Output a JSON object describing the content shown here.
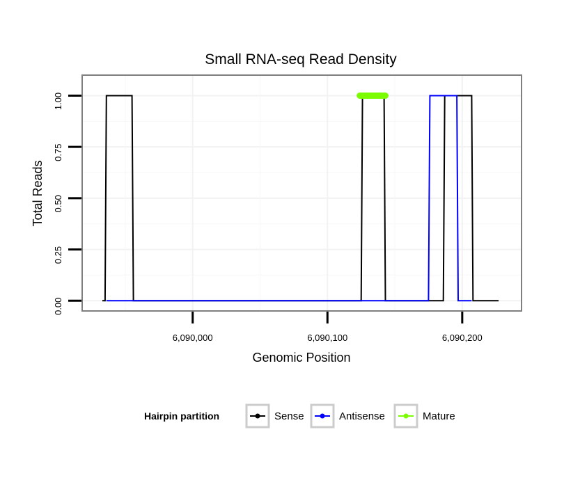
{
  "chart_data": {
    "type": "line",
    "title": "Small RNA-seq Read Density",
    "xlabel": "Genomic Position",
    "ylabel": "Total Reads",
    "xlim": [
      6089918,
      6090244
    ],
    "ylim": [
      -0.05,
      1.1
    ],
    "x_ticks": [
      {
        "value": 6090000,
        "label": "6,090,000"
      },
      {
        "value": 6090100,
        "label": "6,090,100"
      },
      {
        "value": 6090200,
        "label": "6,090,200"
      }
    ],
    "y_ticks": [
      {
        "value": 0,
        "label": "0.00"
      },
      {
        "value": 0.25,
        "label": "0.25"
      },
      {
        "value": 0.5,
        "label": "0.50"
      },
      {
        "value": 0.75,
        "label": "0.75"
      },
      {
        "value": 1.0,
        "label": "1.00"
      }
    ],
    "grid": true,
    "legend": {
      "title": "Hairpin partition",
      "position": "bottom",
      "entries": [
        {
          "label": "Sense",
          "color": "#000000"
        },
        {
          "label": "Antisense",
          "color": "#0000ff"
        },
        {
          "label": "Mature",
          "color": "#7cfc00"
        }
      ]
    },
    "series": [
      {
        "name": "Sense",
        "color": "#000000",
        "points": [
          [
            6089933,
            0
          ],
          [
            6089935,
            0
          ],
          [
            6089936,
            1
          ],
          [
            6089955,
            1
          ],
          [
            6089956,
            0
          ],
          [
            6090125,
            0
          ],
          [
            6090126,
            1
          ],
          [
            6090142,
            1
          ],
          [
            6090143,
            0
          ],
          [
            6090186,
            0
          ],
          [
            6090187,
            1
          ],
          [
            6090207,
            1
          ],
          [
            6090208,
            0
          ],
          [
            6090227,
            0
          ]
        ]
      },
      {
        "name": "Antisense",
        "color": "#0000ff",
        "points": [
          [
            6089936,
            0
          ],
          [
            6090175,
            0
          ],
          [
            6090176,
            1
          ],
          [
            6090186,
            1
          ],
          [
            6090187,
            1
          ],
          [
            6090196,
            1
          ],
          [
            6090197,
            0
          ],
          [
            6090207,
            0
          ]
        ]
      },
      {
        "name": "Mature",
        "color": "#7cfc00",
        "points": [
          [
            6090124,
            1
          ],
          [
            6090143,
            1
          ]
        ]
      }
    ]
  }
}
